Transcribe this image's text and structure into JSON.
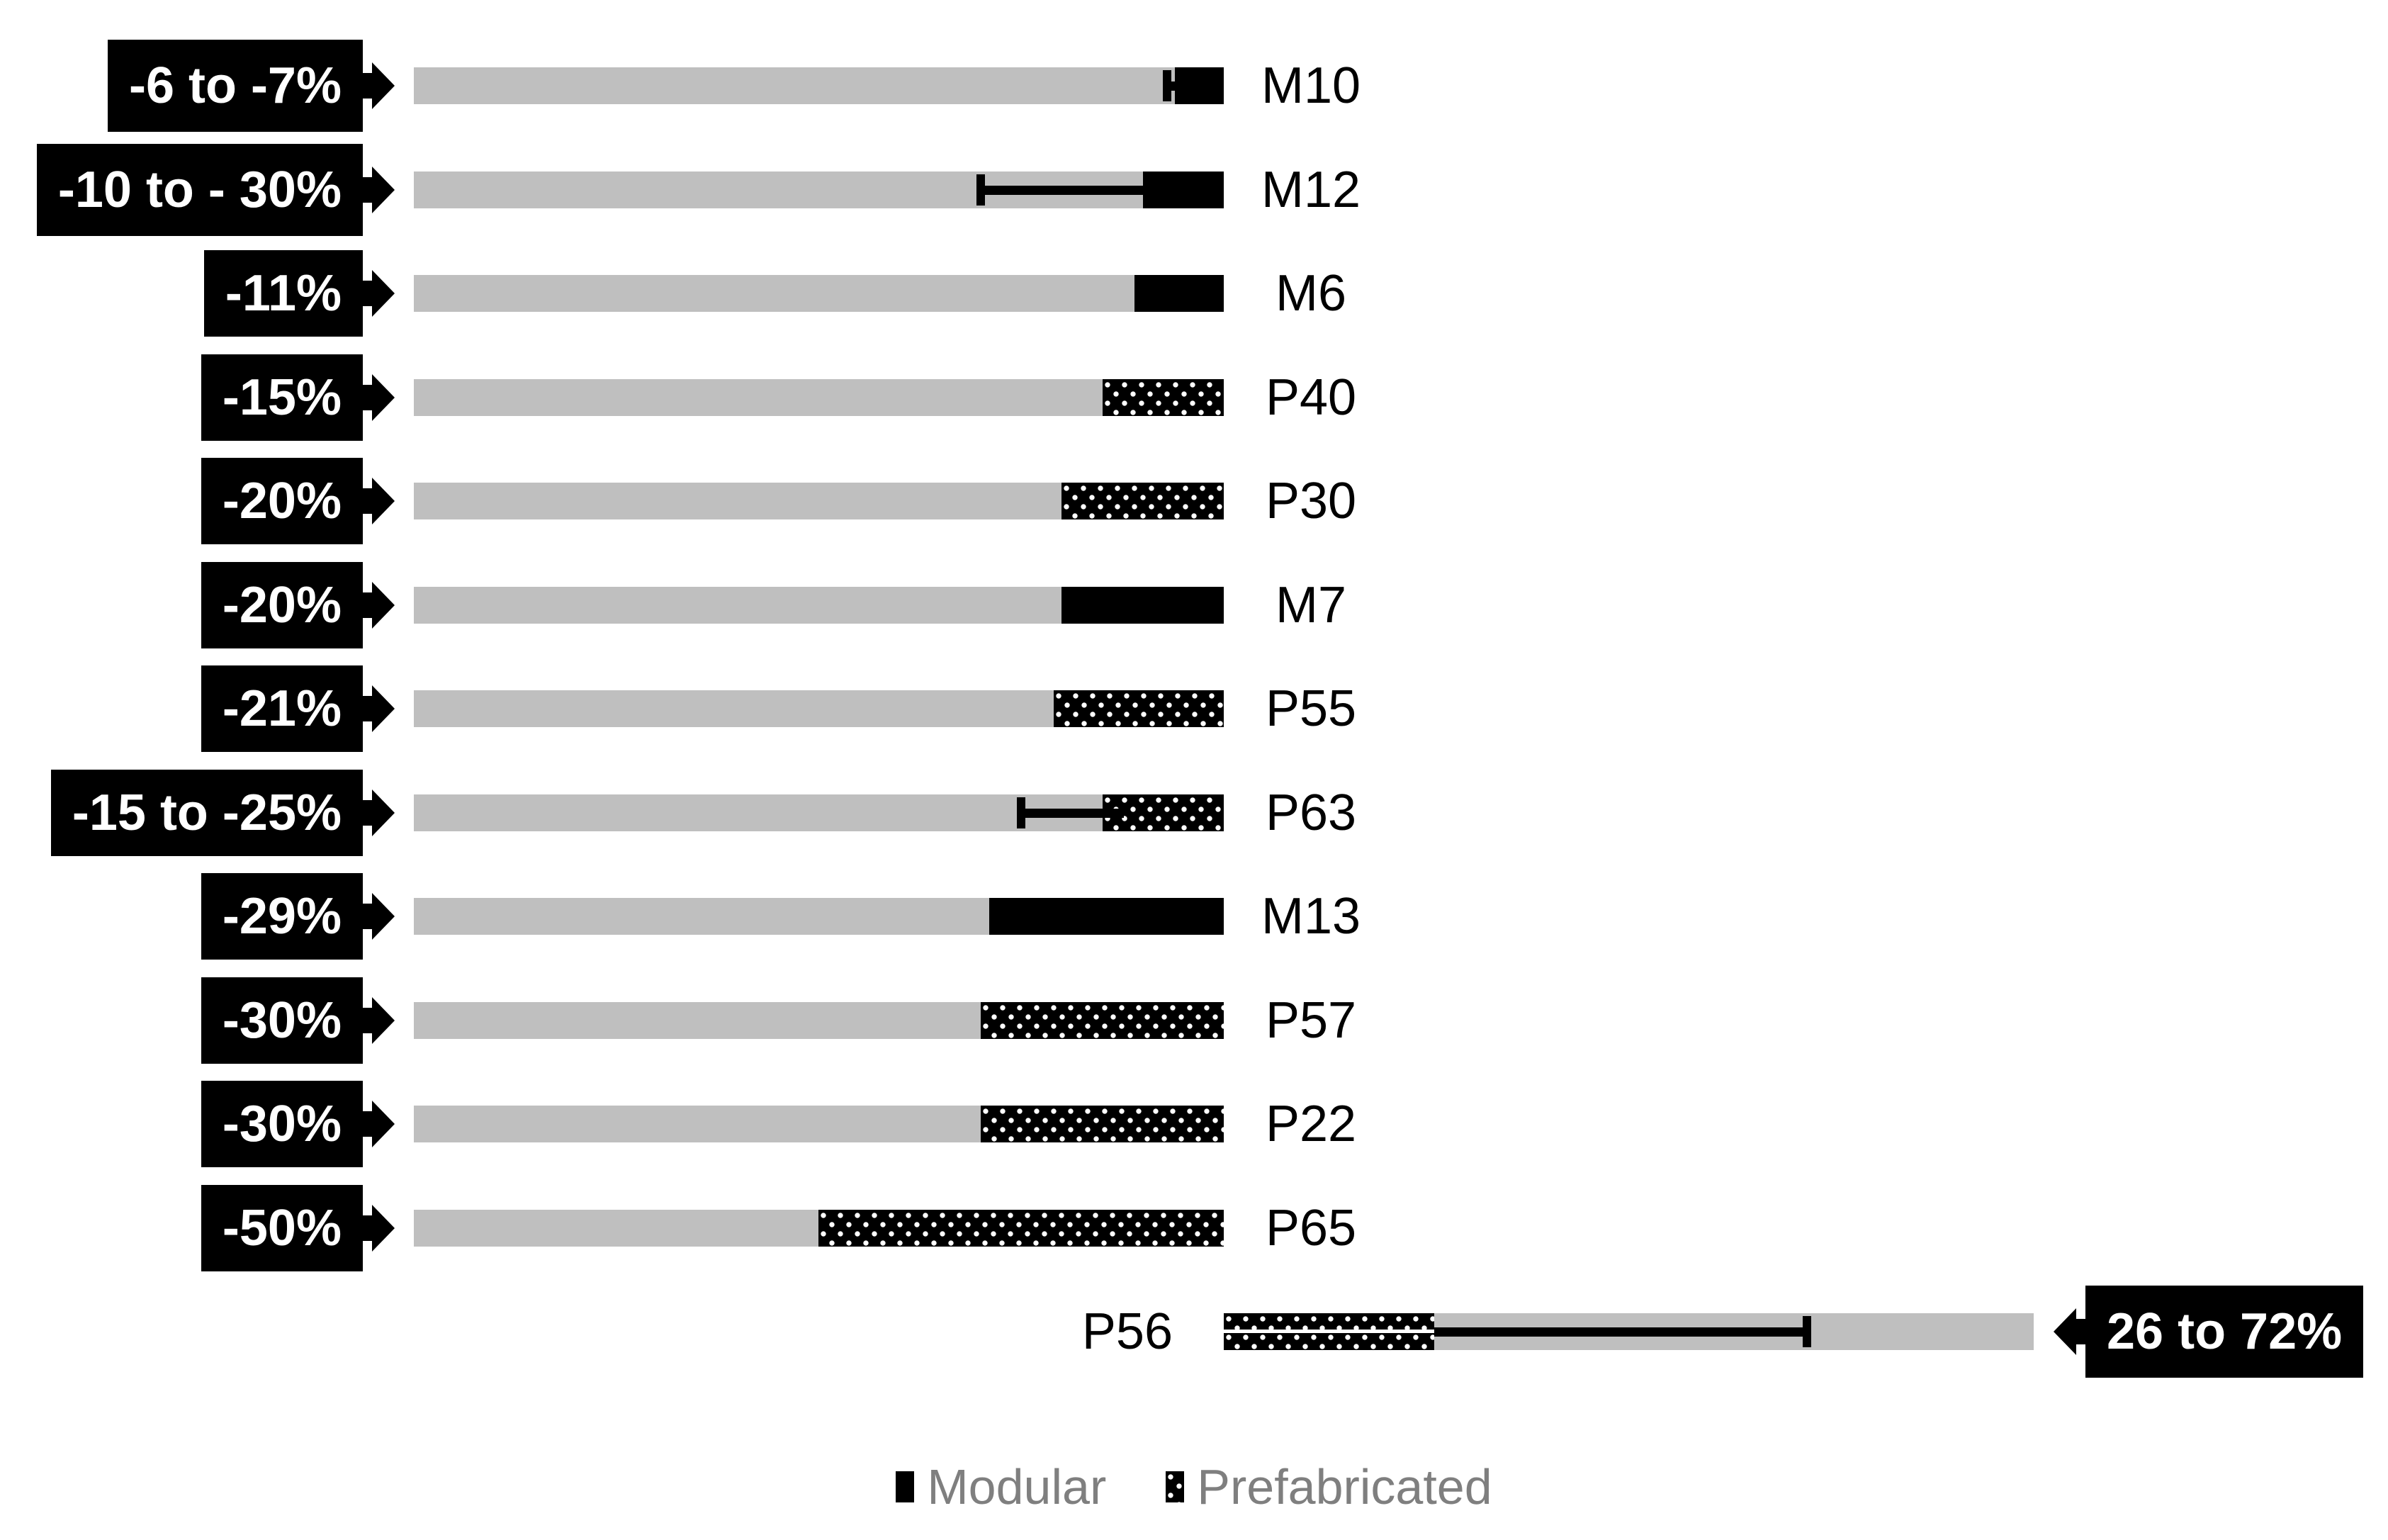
{
  "chart_data": {
    "type": "bar",
    "orientation": "horizontal",
    "title": "",
    "description": "Schedule change of modular (M) and prefabricated (P) projects versus a traditional 100% baseline bar; black/dotted end segments show the reduction, callout arrows give the percentage range",
    "legend_position": "bottom-center",
    "legend": [
      {
        "name": "Modular",
        "style": "solid-black-square"
      },
      {
        "name": "Prefabricated",
        "style": "dotted-black-square"
      }
    ],
    "colors": {
      "baseline_bar": "#bfbfbf",
      "segment": "#000000",
      "callout_bg": "#000000",
      "callout_text": "#ffffff",
      "legend_text": "#7f7f7f",
      "background": "#ffffff"
    },
    "baseline_pct": 100,
    "rows": [
      {
        "label": "M10",
        "series": "Modular",
        "value_label": "-6 to -7%",
        "low": -6,
        "high": -7,
        "segment_pct": 6,
        "error_pct": 7,
        "callout_side": "left",
        "direction": -1
      },
      {
        "label": "M12",
        "series": "Modular",
        "value_label": "-10 to - 30%",
        "low": -10,
        "high": -30,
        "segment_pct": 10,
        "error_pct": 30,
        "callout_side": "left",
        "direction": -1
      },
      {
        "label": "M6",
        "series": "Modular",
        "value_label": "-11%",
        "low": -11,
        "high": null,
        "segment_pct": 11,
        "error_pct": null,
        "callout_side": "left",
        "direction": -1
      },
      {
        "label": "P40",
        "series": "Prefabricated",
        "value_label": "-15%",
        "low": -15,
        "high": null,
        "segment_pct": 15,
        "error_pct": null,
        "callout_side": "left",
        "direction": -1
      },
      {
        "label": "P30",
        "series": "Prefabricated",
        "value_label": "-20%",
        "low": -20,
        "high": null,
        "segment_pct": 20,
        "error_pct": null,
        "callout_side": "left",
        "direction": -1
      },
      {
        "label": "M7",
        "series": "Modular",
        "value_label": "-20%",
        "low": -20,
        "high": null,
        "segment_pct": 20,
        "error_pct": null,
        "callout_side": "left",
        "direction": -1
      },
      {
        "label": "P55",
        "series": "Prefabricated",
        "value_label": "-21%",
        "low": -21,
        "high": null,
        "segment_pct": 21,
        "error_pct": null,
        "callout_side": "left",
        "direction": -1
      },
      {
        "label": "P63",
        "series": "Prefabricated",
        "value_label": "-15 to -25%",
        "low": -15,
        "high": -25,
        "segment_pct": 15,
        "error_pct": 25,
        "callout_side": "left",
        "direction": -1
      },
      {
        "label": "M13",
        "series": "Modular",
        "value_label": "-29%",
        "low": -29,
        "high": null,
        "segment_pct": 29,
        "error_pct": null,
        "callout_side": "left",
        "direction": -1
      },
      {
        "label": "P57",
        "series": "Prefabricated",
        "value_label": "-30%",
        "low": -30,
        "high": null,
        "segment_pct": 30,
        "error_pct": null,
        "callout_side": "left",
        "direction": -1
      },
      {
        "label": "P22",
        "series": "Prefabricated",
        "value_label": "-30%",
        "low": -30,
        "high": null,
        "segment_pct": 30,
        "error_pct": null,
        "callout_side": "left",
        "direction": -1
      },
      {
        "label": "P65",
        "series": "Prefabricated",
        "value_label": "-50%",
        "low": -50,
        "high": null,
        "segment_pct": 50,
        "error_pct": null,
        "callout_side": "left",
        "direction": -1
      },
      {
        "label": "P56",
        "series": "Prefabricated",
        "value_label": "26 to 72%",
        "low": 26,
        "high": 72,
        "segment_pct": 26,
        "error_pct": 72,
        "callout_side": "right",
        "direction": 1
      }
    ]
  }
}
